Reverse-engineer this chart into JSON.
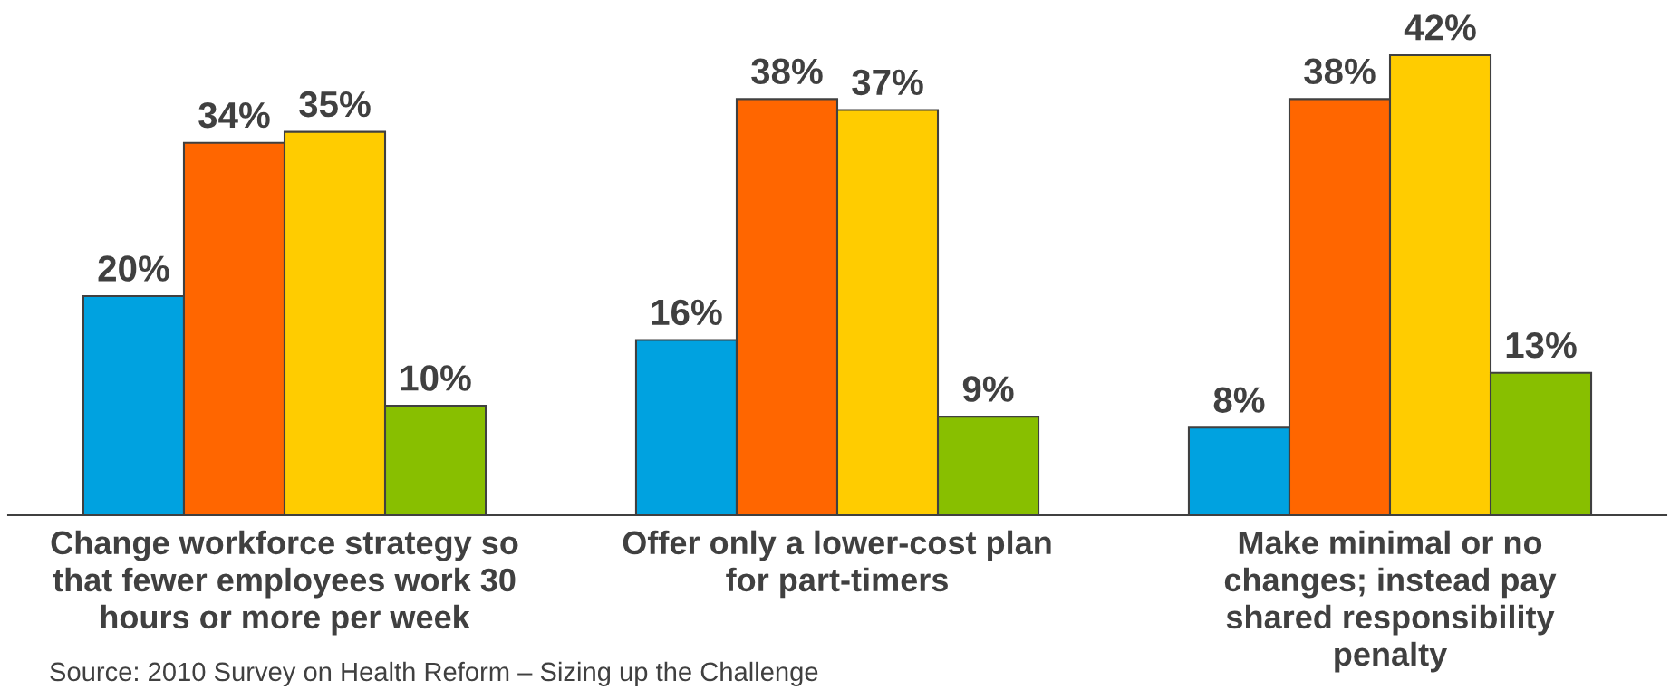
{
  "chart_data": {
    "type": "bar",
    "categories": [
      "Change workforce strategy so\nthat fewer employees work 30\nhours or more per week",
      "Offer only a lower-cost plan\nfor part-timers",
      "Make minimal or no\nchanges; instead pay\nshared responsibility\npenalty"
    ],
    "series": [
      {
        "color": "#00a2e0",
        "values": [
          20,
          16,
          8
        ],
        "value_labels": [
          "20%",
          "16%",
          "8%"
        ]
      },
      {
        "color": "#ff6600",
        "values": [
          34,
          38,
          38
        ],
        "value_labels": [
          "34%",
          "38%",
          "38%"
        ]
      },
      {
        "color": "#ffcc00",
        "values": [
          35,
          37,
          42
        ],
        "value_labels": [
          "35%",
          "37%",
          "42%"
        ]
      },
      {
        "color": "#88bf00",
        "values": [
          10,
          9,
          13
        ],
        "value_labels": [
          "10%",
          "9%",
          "13%"
        ]
      }
    ],
    "tick_labels": "x",
    "annotations": [
      "Source: 2010 Survey on Health Reform – Sizing up the Challenge"
    ]
  }
}
